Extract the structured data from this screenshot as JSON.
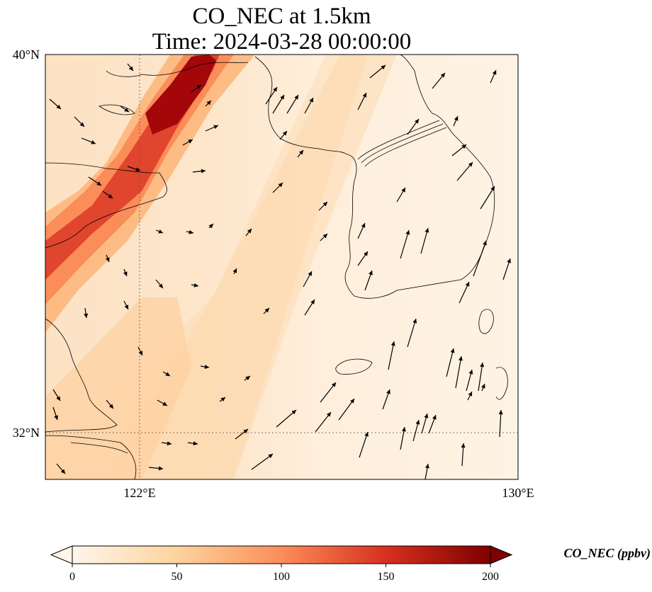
{
  "title_line1": "CO_NEC at 1.5km",
  "title_line2": "Time: 2024-03-28 00:00:00",
  "lat_labels": [
    "40°N",
    "32°N"
  ],
  "lon_labels": [
    "122°E",
    "130°E"
  ],
  "colorbar": {
    "label": "CO_NEC (ppbv)",
    "ticks": [
      "0",
      "50",
      "100",
      "150",
      "200"
    ],
    "min": 0,
    "max": 200,
    "colormap": [
      "#fff5eb",
      "#fdd49e",
      "#fc8d59",
      "#d7301f",
      "#7f0000"
    ]
  },
  "map_extent": {
    "lon_min": 120,
    "lon_max": 130,
    "lat_min": 31,
    "lat_max": 40
  },
  "plume": {
    "description_value_max_ppbv": 200
  }
}
